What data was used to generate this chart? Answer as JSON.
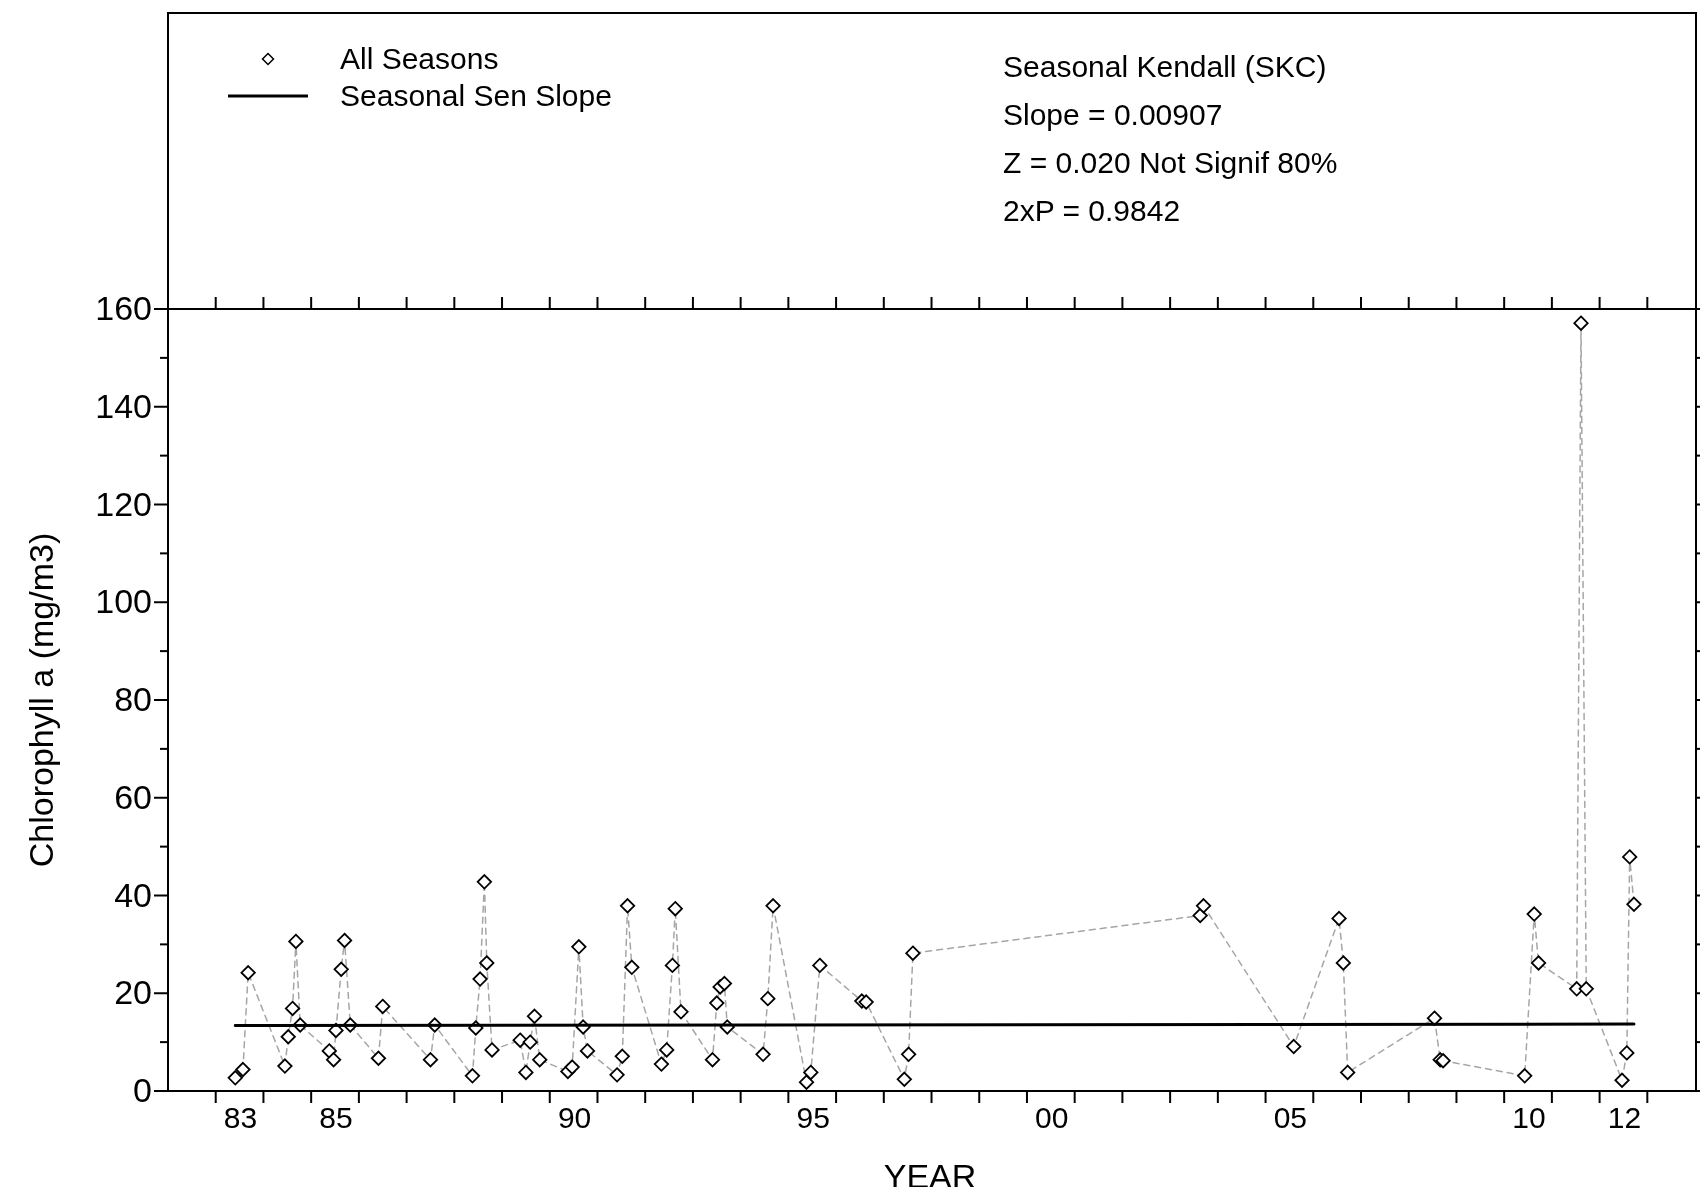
{
  "chart_data": {
    "type": "line",
    "xlabel": "YEAR",
    "ylabel": "Chlorophyll a (mg/m3)",
    "annotations": [
      "Seasonal Kendall (SKC)",
      "Slope = 0.00907",
      "Z = 0.020  Not Signif 80%",
      "2xP = 0.9842"
    ],
    "xlim": [
      1981.48,
      2013.5
    ],
    "ylim": [
      0,
      160
    ],
    "xticks": [
      {
        "value": 1983,
        "label": "83"
      },
      {
        "value": 1985,
        "label": "85"
      },
      {
        "value": 1990,
        "label": "90"
      },
      {
        "value": 1995,
        "label": "95"
      },
      {
        "value": 2000,
        "label": "00"
      },
      {
        "value": 2005,
        "label": "05"
      },
      {
        "value": 2010,
        "label": "10"
      },
      {
        "value": 2012,
        "label": "12"
      },
      {
        "value": 1982.48,
        "label": null
      },
      {
        "value": 1983.48,
        "label": null
      },
      {
        "value": 1984.48,
        "label": null
      },
      {
        "value": 1985.48,
        "label": null
      },
      {
        "value": 1986.48,
        "label": null
      },
      {
        "value": 1987.48,
        "label": null
      },
      {
        "value": 1988.48,
        "label": null
      },
      {
        "value": 1989.48,
        "label": null
      },
      {
        "value": 1990.48,
        "label": null
      },
      {
        "value": 1991.48,
        "label": null
      },
      {
        "value": 1992.48,
        "label": null
      },
      {
        "value": 1993.48,
        "label": null
      },
      {
        "value": 1994.48,
        "label": null
      },
      {
        "value": 1995.48,
        "label": null
      },
      {
        "value": 1996.48,
        "label": null
      },
      {
        "value": 1997.48,
        "label": null
      },
      {
        "value": 1998.48,
        "label": null
      },
      {
        "value": 1999.48,
        "label": null
      },
      {
        "value": 2000.48,
        "label": null
      },
      {
        "value": 2001.48,
        "label": null
      },
      {
        "value": 2002.48,
        "label": null
      },
      {
        "value": 2003.48,
        "label": null
      },
      {
        "value": 2004.48,
        "label": null
      },
      {
        "value": 2005.48,
        "label": null
      },
      {
        "value": 2006.48,
        "label": null
      },
      {
        "value": 2007.48,
        "label": null
      },
      {
        "value": 2008.48,
        "label": null
      },
      {
        "value": 2009.48,
        "label": null
      },
      {
        "value": 2010.48,
        "label": null
      },
      {
        "value": 2011.48,
        "label": null
      },
      {
        "value": 2012.48,
        "label": null
      }
    ],
    "yticks": [
      0,
      20,
      40,
      60,
      80,
      100,
      120,
      140,
      160,
      {
        "value": 10,
        "label": null
      },
      {
        "value": 30,
        "label": null
      },
      {
        "value": 50,
        "label": null
      },
      {
        "value": 70,
        "label": null
      },
      {
        "value": 90,
        "label": null
      },
      {
        "value": 110,
        "label": null
      },
      {
        "value": 130,
        "label": null
      },
      {
        "value": 150,
        "label": null
      }
    ],
    "legend": "top left",
    "grid": false,
    "series": [
      {
        "color": "#a6a6a6",
        "line_style": "dashed",
        "marker": "none",
        "x": [
          1982.89,
          1983.05,
          1983.16,
          1983.93,
          1984.0,
          1984.09,
          1984.16,
          1984.25,
          1984.86,
          1984.95,
          1985.0,
          1985.11,
          1985.18,
          1985.3,
          1985.89,
          1985.98,
          1986.98,
          1987.07,
          1987.86,
          1987.93,
          1988.02,
          1988.11,
          1988.16,
          1988.27,
          1988.86,
          1988.98,
          1989.07,
          1989.16,
          1989.27,
          1989.86,
          1989.95,
          1990.09,
          1990.18,
          1990.27,
          1990.89,
          1991.0,
          1991.11,
          1991.2,
          1991.82,
          1991.93,
          1992.05,
          1992.11,
          1992.23,
          1992.89,
          1992.98,
          1993.05,
          1993.14,
          1993.2,
          1993.95,
          1994.05,
          1994.16,
          1994.86,
          1994.95,
          1995.14,
          1996.02,
          1996.11,
          1996.91,
          1997.0,
          1997.09,
          2003.11,
          2003.18,
          2005.07,
          2006.02,
          2006.11,
          2006.2,
          2008.02,
          2008.14,
          2008.2,
          2009.91,
          2010.11,
          2010.2,
          2011.0,
          2011.09,
          2011.2,
          2011.95,
          2012.05,
          2012.11,
          2012.2
        ],
        "values": [
          2.7,
          4.4,
          24.2,
          5.1,
          11.1,
          16.9,
          30.6,
          13.5,
          8.2,
          6.4,
          12.4,
          24.9,
          30.8,
          13.5,
          6.7,
          17.3,
          6.4,
          13.5,
          3.1,
          12.9,
          22.9,
          42.8,
          26.2,
          8.4,
          10.4,
          3.8,
          10.0,
          15.3,
          6.4,
          4.0,
          4.9,
          29.5,
          13.1,
          8.2,
          3.3,
          7.1,
          37.9,
          25.3,
          5.5,
          8.4,
          25.7,
          37.3,
          16.2,
          6.4,
          18.0,
          21.3,
          22.0,
          13.1,
          7.5,
          18.9,
          37.9,
          1.8,
          3.8,
          25.7,
          18.4,
          18.2,
          2.4,
          7.5,
          28.2,
          35.9,
          37.9,
          9.1,
          35.3,
          26.2,
          3.8,
          14.9,
          6.4,
          6.2,
          3.1,
          36.2,
          26.2,
          20.9,
          157.1,
          20.9,
          2.2,
          7.8,
          47.9,
          38.2
        ]
      },
      {
        "type": "scatter",
        "name": "All Seasons",
        "color": "#000000",
        "marker": "diamond",
        "x": [
          1982.89,
          1983.05,
          1983.16,
          1983.93,
          1984.0,
          1984.09,
          1984.16,
          1984.25,
          1984.86,
          1984.95,
          1985.0,
          1985.11,
          1985.18,
          1985.3,
          1985.89,
          1985.98,
          1986.98,
          1987.07,
          1987.86,
          1987.93,
          1988.02,
          1988.11,
          1988.16,
          1988.27,
          1988.86,
          1988.98,
          1989.07,
          1989.16,
          1989.27,
          1989.86,
          1989.95,
          1990.09,
          1990.18,
          1990.27,
          1990.89,
          1991.0,
          1991.11,
          1991.2,
          1991.82,
          1991.93,
          1992.05,
          1992.11,
          1992.23,
          1992.89,
          1992.98,
          1993.05,
          1993.14,
          1993.2,
          1993.95,
          1994.05,
          1994.16,
          1994.86,
          1994.95,
          1995.14,
          1996.02,
          1996.11,
          1996.91,
          1997.0,
          1997.09,
          2003.11,
          2003.18,
          2005.07,
          2006.02,
          2006.11,
          2006.2,
          2008.02,
          2008.14,
          2008.2,
          2009.91,
          2010.11,
          2010.2,
          2011.0,
          2011.09,
          2011.2,
          2011.95,
          2012.05,
          2012.11,
          2012.2
        ],
        "values": [
          2.7,
          4.4,
          24.2,
          5.1,
          11.1,
          16.9,
          30.6,
          13.5,
          8.2,
          6.4,
          12.4,
          24.9,
          30.8,
          13.5,
          6.7,
          17.3,
          6.4,
          13.5,
          3.1,
          12.9,
          22.9,
          42.8,
          26.2,
          8.4,
          10.4,
          3.8,
          10.0,
          15.3,
          6.4,
          4.0,
          4.9,
          29.5,
          13.1,
          8.2,
          3.3,
          7.1,
          37.9,
          25.3,
          5.5,
          8.4,
          25.7,
          37.3,
          16.2,
          6.4,
          18.0,
          21.3,
          22.0,
          13.1,
          7.5,
          18.9,
          37.9,
          1.8,
          3.8,
          25.7,
          18.4,
          18.2,
          2.4,
          7.5,
          28.2,
          35.9,
          37.9,
          9.1,
          35.3,
          26.2,
          3.8,
          14.9,
          6.4,
          6.2,
          3.1,
          36.2,
          26.2,
          20.9,
          157.1,
          20.9,
          2.2,
          7.8,
          47.9,
          38.2
        ]
      },
      {
        "type": "line",
        "name": "Seasonal Sen Slope",
        "color": "#000000",
        "line_style": "solid",
        "marker": "none",
        "x": [
          1982.89,
          2012.2
        ],
        "values": [
          13.4,
          13.7
        ]
      }
    ]
  }
}
